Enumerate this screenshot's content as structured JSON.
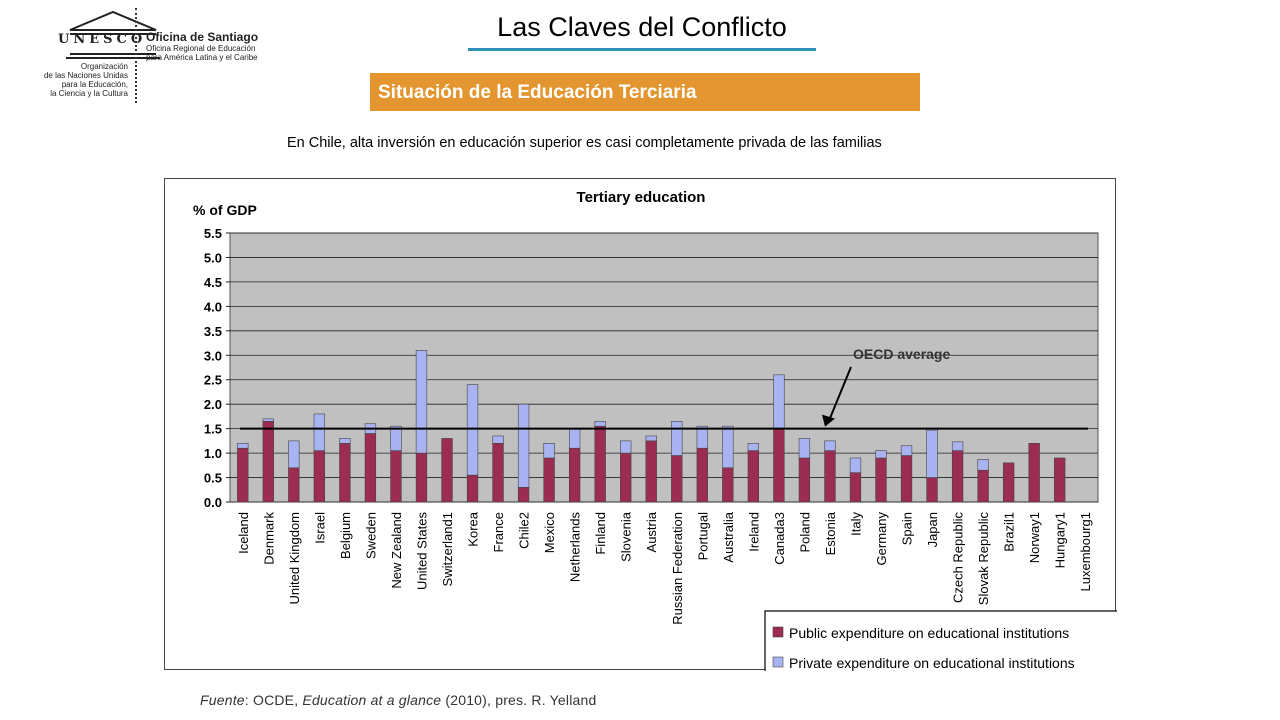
{
  "header": {
    "logo_word": "UNESCO",
    "unesco_full_name": [
      "Organización",
      "de las Naciones Unidas",
      "para la Educación,",
      "la Ciencia y la Cultura"
    ],
    "office_title": "Oficina de Santiago",
    "office_subtitle": [
      "Oficina Regional de Educación",
      "para América Latina y el Caribe"
    ]
  },
  "slide": {
    "title": "Las Claves del Conflicto",
    "section": "Situación de la Educación Terciaria",
    "subtitle": "En Chile, alta inversión en educación superior es casi completamente privada de las familias",
    "source_prefix": "Fuente",
    "source_sep": ": OCDE, ",
    "source_title": "Education at a glance",
    "source_rest": " (2010), pres. R. Yelland"
  },
  "colors": {
    "accent_rule": "#2e8fb8",
    "section_bar": "#e3962f",
    "public": "#9b2d52",
    "private": "#a9b3f2",
    "plot_bg": "#c0c0c0"
  },
  "chart_data": {
    "type": "bar",
    "stacked": true,
    "title": "Tertiary education",
    "ylabel": "% of GDP",
    "ylim": [
      0,
      5.5
    ],
    "yticks": [
      "0.0",
      "0.5",
      "1.0",
      "1.5",
      "2.0",
      "2.5",
      "3.0",
      "3.5",
      "4.0",
      "4.5",
      "5.0",
      "5.5"
    ],
    "grid": true,
    "legend_position": "bottom-right",
    "categories": [
      "Iceland",
      "Denmark",
      "United Kingdom",
      "Israel",
      "Belgium",
      "Sweden",
      "New Zealand",
      "United States",
      "Switzerland1",
      "Korea",
      "France",
      "Chile2",
      "Mexico",
      "Netherlands",
      "Finland",
      "Slovenia",
      "Austria",
      "Russian Federation",
      "Portugal",
      "Australia",
      "Ireland",
      "Canada3",
      "Poland",
      "Estonia",
      "Italy",
      "Germany",
      "Spain",
      "Japan",
      "Czech Republic",
      "Slovak Republic",
      "Brazil1",
      "Norway1",
      "Hungary1",
      "Luxembourg1"
    ],
    "series": [
      {
        "name": "Public expenditure on educational institutions",
        "values": [
          1.1,
          1.65,
          0.7,
          1.05,
          1.2,
          1.4,
          1.05,
          1.0,
          1.3,
          0.55,
          1.2,
          0.3,
          0.9,
          1.1,
          1.55,
          1.0,
          1.25,
          0.95,
          1.1,
          0.7,
          1.05,
          1.5,
          0.9,
          1.05,
          0.6,
          0.9,
          0.95,
          0.5,
          1.05,
          0.65,
          0.8,
          1.2,
          0.9,
          0.0
        ]
      },
      {
        "name": "Private expenditure on educational institutions",
        "values": [
          0.1,
          0.05,
          0.55,
          0.75,
          0.1,
          0.2,
          0.5,
          2.1,
          0.0,
          1.85,
          0.15,
          1.7,
          0.3,
          0.4,
          0.1,
          0.25,
          0.1,
          0.7,
          0.45,
          0.85,
          0.15,
          1.1,
          0.4,
          0.2,
          0.3,
          0.15,
          0.2,
          0.97,
          0.18,
          0.22,
          0.0,
          0.0,
          0.0,
          0.0
        ]
      }
    ],
    "reference_line": {
      "label": "OECD average",
      "value": 1.5
    }
  }
}
